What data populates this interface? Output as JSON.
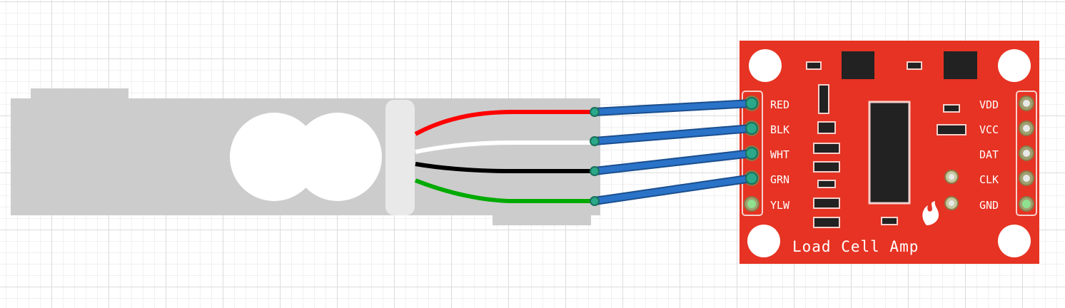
{
  "board": {
    "title": "Load Cell Amp",
    "left_pins": [
      "RED",
      "BLK",
      "WHT",
      "GRN",
      "YLW"
    ],
    "right_pins": [
      "VDD",
      "VCC",
      "DAT",
      "CLK",
      "GND"
    ],
    "color": "#e63323"
  },
  "load_cell": {
    "body_color": "#cccccc",
    "wire_colors": [
      "#ff0000",
      "#ffffff",
      "#000000",
      "#00aa00"
    ]
  },
  "jumper_color": "#2a73c8"
}
